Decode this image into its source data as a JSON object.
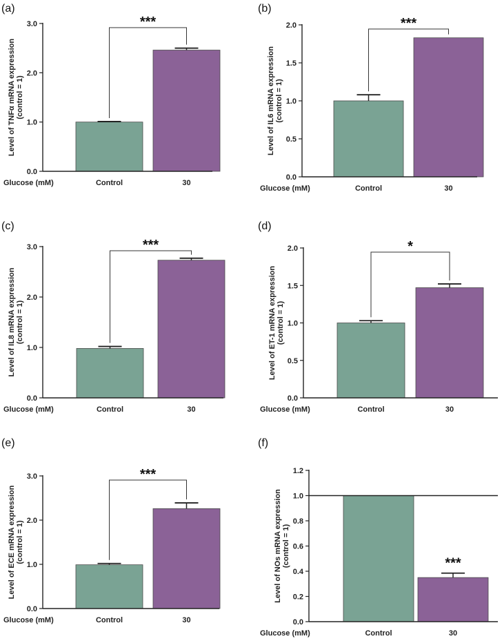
{
  "chart_data": [
    {
      "type": "bar",
      "panel_label": "(a)",
      "ylabel_line1": "Level of TNFα mRNA expression",
      "ylabel_line2": "(control = 1)",
      "xlabel": "Glucose (mM)",
      "categories": [
        "Control",
        "30"
      ],
      "values": [
        1.0,
        2.46
      ],
      "errors": [
        0.01,
        0.04
      ],
      "ylim": [
        0,
        3.0
      ],
      "yticks": [
        0.0,
        1.0,
        2.0,
        3.0
      ],
      "ytick_labels": [
        "0.0",
        "1.0",
        "2.0",
        "3.0"
      ],
      "significance": "***",
      "significance_type": "bracket",
      "reference_line": null,
      "colors": [
        "#7aa394",
        "#8b6297"
      ]
    },
    {
      "type": "bar",
      "panel_label": "(b)",
      "ylabel_line1": "Level of IL6 mRNA expression",
      "ylabel_line2": "(control = 1)",
      "xlabel": "Glucose (mM)",
      "categories": [
        "Control",
        "30"
      ],
      "values": [
        1.0,
        1.83
      ],
      "errors": [
        0.08,
        0.0
      ],
      "ylim": [
        0,
        2.0
      ],
      "yticks": [
        0.0,
        0.5,
        1.0,
        1.5,
        2.0
      ],
      "ytick_labels": [
        "0.0",
        "0.5",
        "1.0",
        "1.5",
        "2.0"
      ],
      "significance": "***",
      "significance_type": "bracket",
      "reference_line": null,
      "colors": [
        "#7aa394",
        "#8b6297"
      ]
    },
    {
      "type": "bar",
      "panel_label": "(c)",
      "ylabel_line1": "Level of IL8 mRNA expression",
      "ylabel_line2": "(control = 1)",
      "xlabel": "Glucose (mM)",
      "categories": [
        "Control",
        "30"
      ],
      "values": [
        0.98,
        2.73
      ],
      "errors": [
        0.04,
        0.04
      ],
      "ylim": [
        0,
        3.0
      ],
      "yticks": [
        0.0,
        1.0,
        2.0,
        3.0
      ],
      "ytick_labels": [
        "0.0",
        "1.0",
        "2.0",
        "3.0"
      ],
      "significance": "***",
      "significance_type": "bracket",
      "reference_line": null,
      "colors": [
        "#7aa394",
        "#8b6297"
      ]
    },
    {
      "type": "bar",
      "panel_label": "(d)",
      "ylabel_line1": "Level of ET-1 mRNA expression",
      "ylabel_line2": "(control = 1)",
      "xlabel": "Glucose (mM)",
      "categories": [
        "Control",
        "30"
      ],
      "values": [
        1.0,
        1.47
      ],
      "errors": [
        0.03,
        0.05
      ],
      "ylim": [
        0,
        2.0
      ],
      "yticks": [
        0.0,
        0.5,
        1.0,
        1.5,
        2.0
      ],
      "ytick_labels": [
        "0.0",
        "0.5",
        "1.0",
        "1.5",
        "2.0"
      ],
      "significance": "*",
      "significance_type": "bracket",
      "reference_line": null,
      "colors": [
        "#7aa394",
        "#8b6297"
      ]
    },
    {
      "type": "bar",
      "panel_label": "(e)",
      "ylabel_line1": "Level of ECE mRNA expression",
      "ylabel_line2": "(control = 1)",
      "xlabel": "Glucose (mM)",
      "categories": [
        "Control",
        "30"
      ],
      "values": [
        0.99,
        2.26
      ],
      "errors": [
        0.03,
        0.13
      ],
      "ylim": [
        0,
        3.0
      ],
      "yticks": [
        0.0,
        1.0,
        2.0,
        3.0
      ],
      "ytick_labels": [
        "0.0",
        "1.0",
        "2.0",
        "3.0"
      ],
      "significance": "***",
      "significance_type": "bracket",
      "reference_line": null,
      "colors": [
        "#7aa394",
        "#8b6297"
      ]
    },
    {
      "type": "bar",
      "panel_label": "(f)",
      "ylabel_line1": "Level of NOs mRNA expression",
      "ylabel_line2": "(control = 1)",
      "xlabel": "Glucose (mM)",
      "categories": [
        "Control",
        "30"
      ],
      "values": [
        1.0,
        0.35
      ],
      "errors": [
        0.0,
        0.035
      ],
      "ylim": [
        0,
        1.2
      ],
      "yticks": [
        0.0,
        0.2,
        0.4,
        0.6,
        0.8,
        1.0,
        1.2
      ],
      "ytick_labels": [
        "0.0",
        "0.2",
        "0.4",
        "0.6",
        "0.8",
        "1.0",
        "1.2"
      ],
      "significance": "***",
      "significance_type": "above_bar",
      "reference_line": 1.0,
      "colors": [
        "#7aa394",
        "#8b6297"
      ]
    }
  ]
}
